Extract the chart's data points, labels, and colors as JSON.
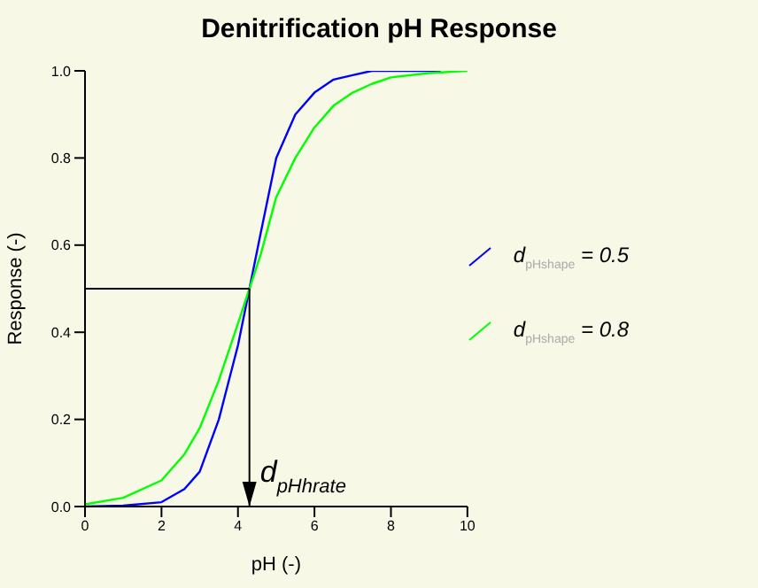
{
  "chart_data": {
    "type": "line",
    "title": "Denitrification pH Response",
    "xlabel": "pH (-)",
    "ylabel": "Response (-)",
    "xlim": [
      0,
      10
    ],
    "xticks": [
      0,
      2,
      4,
      6,
      8,
      10
    ],
    "ylim": [
      0,
      1
    ],
    "yticks": [
      {
        "value": 0,
        "label": "0.0"
      },
      0.2,
      0.4,
      0.6,
      0.8,
      {
        "value": 1,
        "label": "1.0"
      }
    ],
    "legend": "right",
    "series": [
      {
        "name": "d$_{pHshape}$ = 0.5",
        "color": "#0000ff",
        "x": [
          0,
          1,
          2,
          2.6,
          3,
          3.5,
          4,
          4.3,
          4.6,
          5,
          5.5,
          6,
          6.5,
          7,
          7.5,
          8,
          9.3
        ],
        "values": [
          0,
          0.002,
          0.01,
          0.04,
          0.08,
          0.2,
          0.37,
          0.5,
          0.63,
          0.8,
          0.9,
          0.95,
          0.98,
          0.99,
          1,
          1,
          1
        ]
      },
      {
        "name": "d$_{pHshape}$ = 0.8",
        "color": "#00ff00",
        "x": [
          0,
          1,
          2,
          2.6,
          3,
          3.5,
          4,
          4.3,
          4.6,
          5,
          5.5,
          6,
          6.5,
          7,
          7.5,
          8,
          9,
          10
        ],
        "values": [
          0.005,
          0.02,
          0.06,
          0.12,
          0.18,
          0.29,
          0.42,
          0.5,
          0.58,
          0.71,
          0.8,
          0.87,
          0.92,
          0.95,
          0.97,
          0.985,
          0.995,
          1
        ]
      }
    ],
    "ref_lines": [
      {
        "axis": "y",
        "value": 0.5,
        "color": "#000000"
      },
      {
        "axis": "x",
        "value": 4.3,
        "label": "d$_{pHhrate}$",
        "color": "#000000"
      }
    ]
  }
}
